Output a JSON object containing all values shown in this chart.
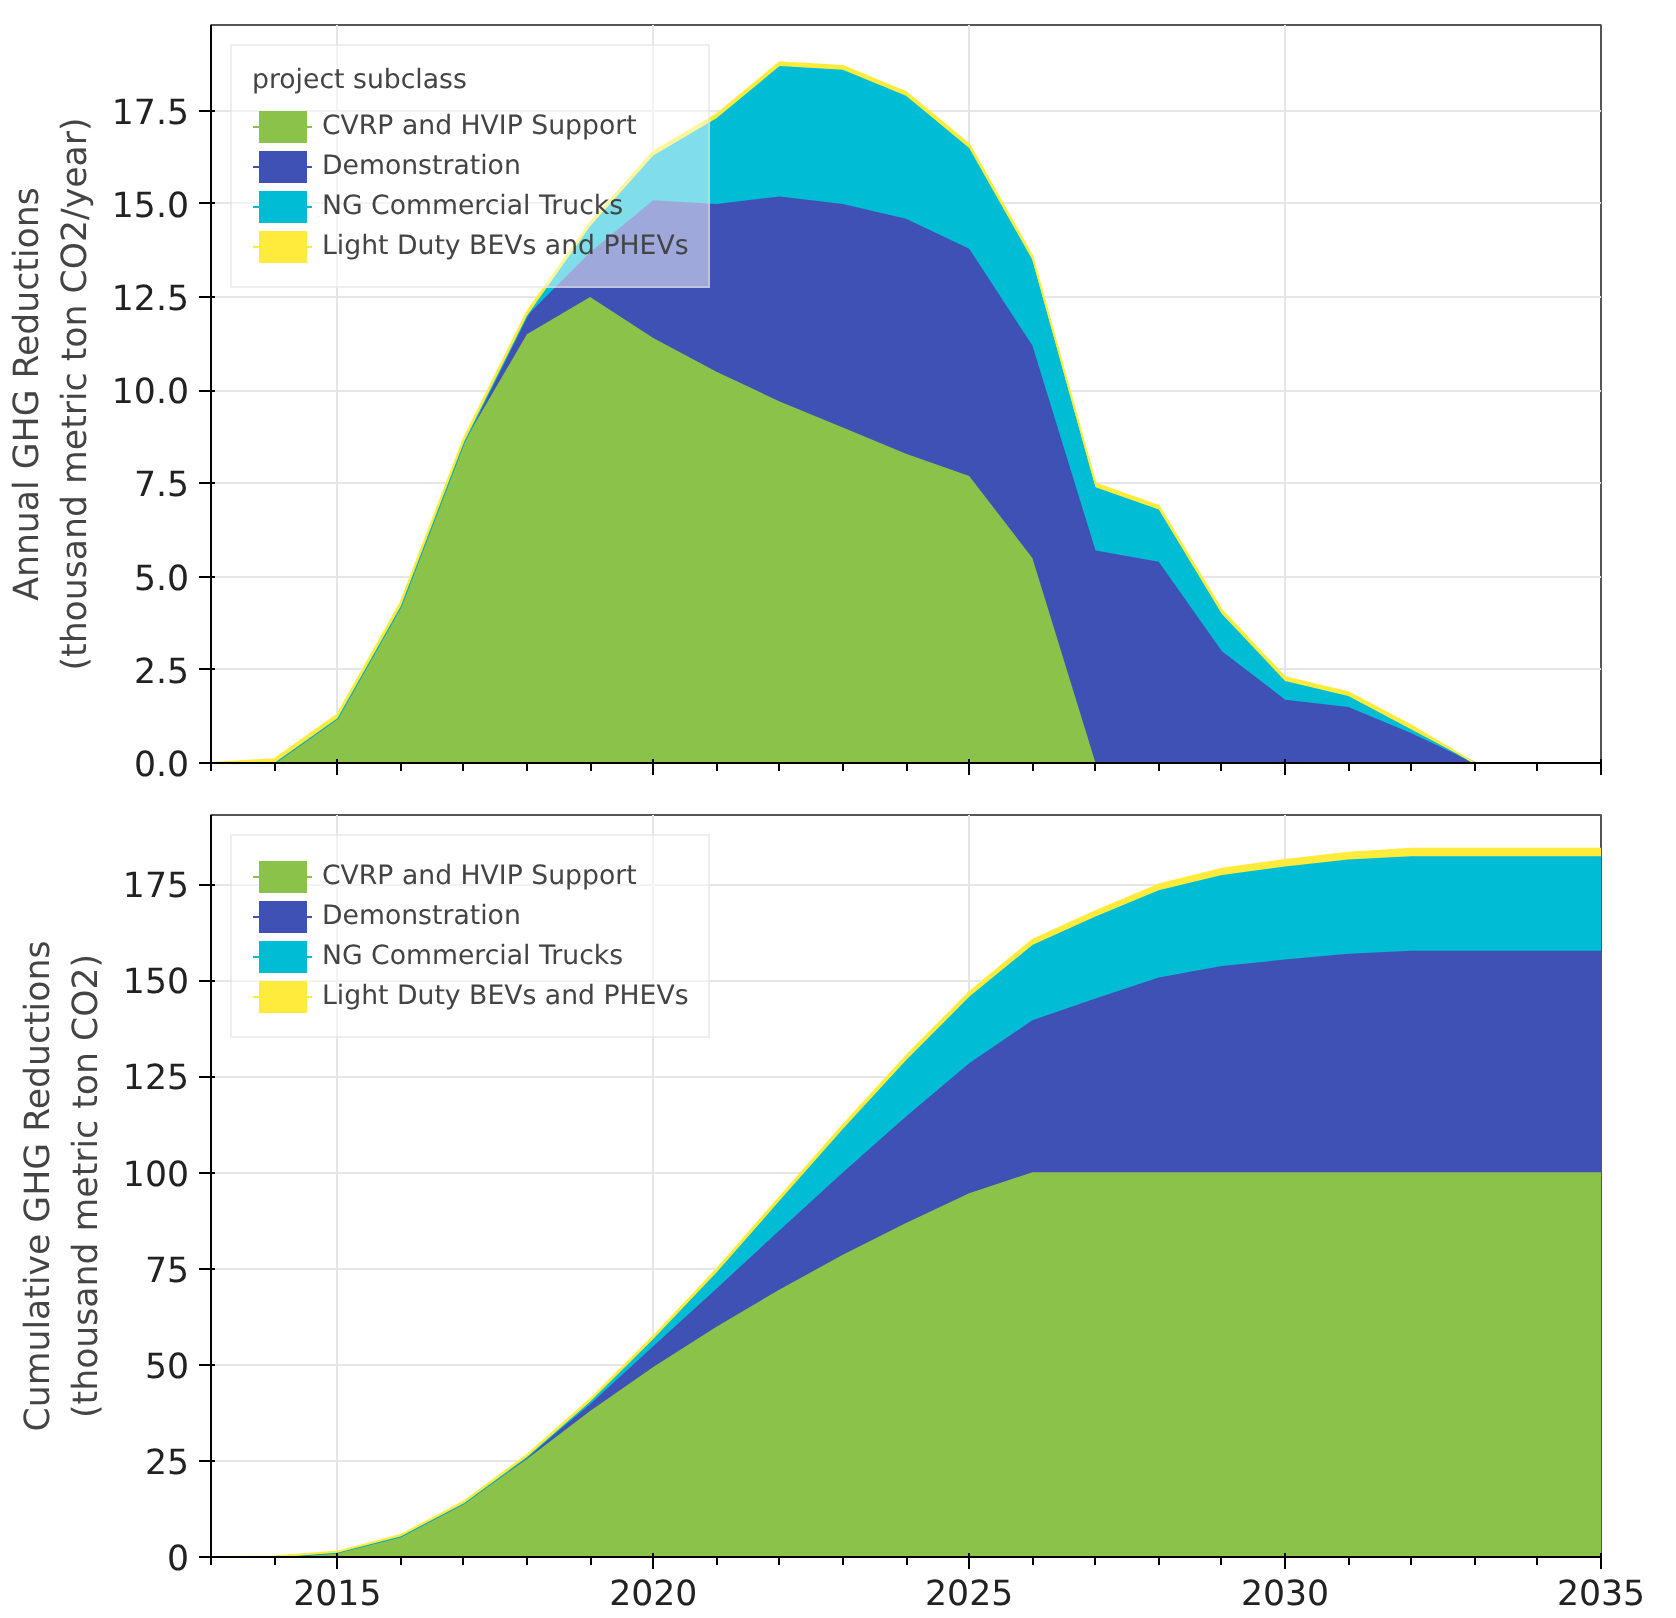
{
  "chart_data": [
    {
      "type": "area",
      "stacked": true,
      "ylabel": "Annual GHG Reductions\n(thousand metric ton CO2/year)",
      "legend_title": "project subclass",
      "legend": "top left",
      "grid": true,
      "tick_labels": "y",
      "x": [
        2013,
        2014,
        2015,
        2016,
        2017,
        2018,
        2019,
        2020,
        2021,
        2022,
        2023,
        2024,
        2025,
        2026,
        2027,
        2028,
        2029,
        2030,
        2031,
        2032,
        2033,
        2034,
        2035
      ],
      "xlim": [
        2013,
        2035
      ],
      "xticks": [
        {
          "value": 2015,
          "label": null
        },
        {
          "value": 2020,
          "label": null
        },
        {
          "value": 2025,
          "label": null
        },
        {
          "value": 2030,
          "label": null
        },
        {
          "value": 2035,
          "label": null
        }
      ],
      "ylim": [
        0,
        19.8
      ],
      "yticks": [
        {
          "value": 0,
          "label": "0.0"
        },
        {
          "value": 2.5,
          "label": "2.5"
        },
        {
          "value": 5,
          "label": "5.0"
        },
        {
          "value": 7.5,
          "label": "7.5"
        },
        {
          "value": 10,
          "label": "10.0"
        },
        {
          "value": 12.5,
          "label": "12.5"
        },
        {
          "value": 15,
          "label": "15.0"
        },
        {
          "value": 17.5,
          "label": "17.5"
        }
      ],
      "series": [
        {
          "name": "CVRP and HVIP Support",
          "color": "#8bc34a",
          "values": [
            0,
            0,
            1.2,
            4.2,
            8.6,
            11.5,
            12.5,
            11.4,
            10.5,
            9.7,
            9.0,
            8.3,
            7.7,
            5.5,
            0,
            0,
            0,
            0,
            0,
            0,
            0,
            0,
            0
          ]
        },
        {
          "name": "Demonstration",
          "color": "#3f51b5",
          "values": [
            0,
            0,
            0,
            0,
            0,
            0.5,
            1.2,
            3.7,
            4.5,
            5.5,
            6.0,
            6.3,
            6.1,
            5.7,
            5.7,
            5.4,
            3.0,
            1.7,
            1.5,
            0.8,
            0,
            0,
            0
          ]
        },
        {
          "name": "NG Commercial Trucks",
          "color": "#00bcd4",
          "values": [
            0,
            0,
            0,
            0,
            0,
            0,
            0.7,
            1.2,
            2.3,
            3.5,
            3.6,
            3.3,
            2.7,
            2.3,
            1.7,
            1.4,
            1.0,
            0.5,
            0.3,
            0.1,
            0,
            0,
            0
          ]
        },
        {
          "name": "Light Duty BEVs and PHEVs",
          "color": "#ffeb3b",
          "values": [
            0,
            0.1,
            0.1,
            0.1,
            0.1,
            0.1,
            0.1,
            0.1,
            0.1,
            0.1,
            0.1,
            0.1,
            0.1,
            0.1,
            0.1,
            0.1,
            0.1,
            0.1,
            0.1,
            0.1,
            0,
            0,
            0
          ]
        }
      ]
    },
    {
      "type": "area",
      "stacked": true,
      "ylabel": "Cumulative GHG Reductions\n(thousand metric ton CO2)",
      "legend": "top left",
      "grid": true,
      "x": [
        2013,
        2014,
        2015,
        2016,
        2017,
        2018,
        2019,
        2020,
        2021,
        2022,
        2023,
        2024,
        2025,
        2026,
        2027,
        2028,
        2029,
        2030,
        2031,
        2032,
        2033,
        2034,
        2035
      ],
      "xlim": [
        2013,
        2035
      ],
      "xticks": [
        2015,
        2020,
        2025,
        2030,
        2035
      ],
      "ylim": [
        0,
        193
      ],
      "yticks": [
        0,
        25,
        50,
        75,
        100,
        125,
        150,
        175
      ],
      "series": [
        {
          "name": "CVRP and HVIP Support",
          "color": "#8bc34a",
          "values": [
            0,
            0,
            1.2,
            5.4,
            14.0,
            25.5,
            38.0,
            49.4,
            59.9,
            69.6,
            78.6,
            86.9,
            94.6,
            100.1,
            100.1,
            100.1,
            100.1,
            100.1,
            100.1,
            100.1,
            100.1,
            100.1,
            100.1
          ]
        },
        {
          "name": "Demonstration",
          "color": "#3f51b5",
          "values": [
            0,
            0,
            0,
            0,
            0,
            0.5,
            1.7,
            5.4,
            9.9,
            15.4,
            21.4,
            27.7,
            33.8,
            39.5,
            45.2,
            50.6,
            53.6,
            55.3,
            56.8,
            57.6,
            57.6,
            57.6,
            57.6
          ]
        },
        {
          "name": "NG Commercial Trucks",
          "color": "#00bcd4",
          "values": [
            0,
            0,
            0,
            0,
            0,
            0,
            0.7,
            1.9,
            4.2,
            7.7,
            11.3,
            14.6,
            17.3,
            19.6,
            21.3,
            22.7,
            23.7,
            24.2,
            24.5,
            24.6,
            24.6,
            24.6,
            24.6
          ]
        },
        {
          "name": "Light Duty BEVs and PHEVs",
          "color": "#ffeb3b",
          "values": [
            0,
            0.1,
            0.2,
            0.3,
            0.4,
            0.5,
            0.6,
            0.7,
            0.8,
            0.9,
            1.0,
            1.1,
            1.2,
            1.3,
            1.4,
            1.5,
            1.6,
            1.7,
            1.8,
            1.9,
            1.9,
            1.9,
            1.9
          ]
        }
      ]
    }
  ]
}
